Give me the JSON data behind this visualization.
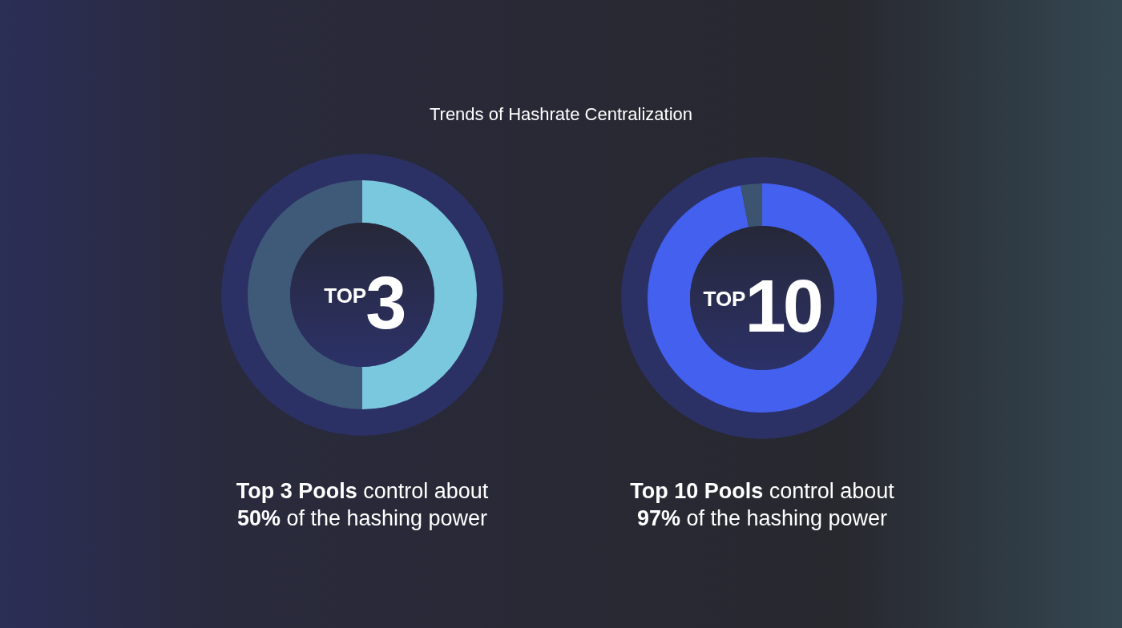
{
  "chart_data": [
    {
      "type": "donut",
      "title": "Trends of Hashrate Centralization",
      "categories": [
        null,
        null
      ],
      "values": [
        50,
        50
      ],
      "colors": [
        "#7ac8de",
        "#3f5a78"
      ],
      "annotations": [
        "Top 3 Pools",
        "control about",
        "50%",
        "of the hashing power",
        "TOP",
        "3"
      ]
    },
    {
      "type": "donut",
      "categories": [
        null,
        null
      ],
      "values": [
        97,
        3
      ],
      "colors": [
        "#4360ee",
        "#3c5470"
      ],
      "annotations": [
        "Top 10 Pools",
        "control about",
        "97%",
        "of the hashing power",
        "TOP",
        "10"
      ]
    }
  ]
}
